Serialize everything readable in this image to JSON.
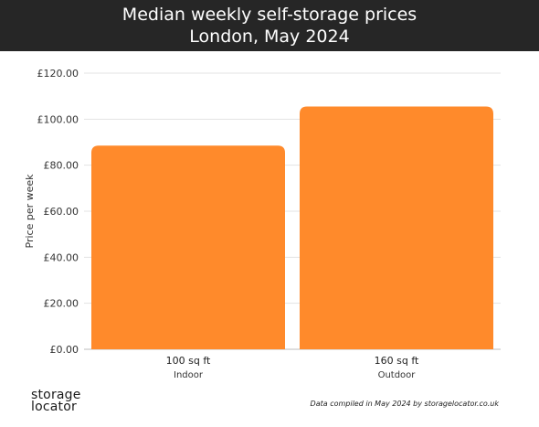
{
  "header": {
    "title": "Median weekly self-storage prices",
    "subtitle": "London, May 2024"
  },
  "chart_data": {
    "type": "bar",
    "title": "Median weekly self-storage prices",
    "subtitle": "London, May 2024",
    "categories": [
      "100 sq ft",
      "160 sq ft"
    ],
    "category_sublabels": [
      "Indoor",
      "Outdoor"
    ],
    "values": [
      88.5,
      105.5
    ],
    "ylabel": "Price per week",
    "xlabel": "",
    "ylim": [
      0,
      120
    ],
    "yticks": [
      0,
      20,
      40,
      60,
      80,
      100,
      120
    ],
    "ytick_labels": [
      "£0.00",
      "£20.00",
      "£40.00",
      "£60.00",
      "£80.00",
      "£100.00",
      "£120.00"
    ],
    "grid": true,
    "bar_color": "#FF8A2B"
  },
  "footer": {
    "logo_line1": "storage",
    "logo_line2": "locator",
    "note": "Data compiled in May 2024 by storagelocator.co.uk"
  }
}
